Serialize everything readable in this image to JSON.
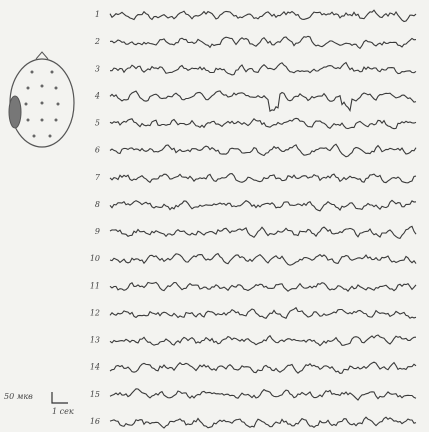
{
  "channels": [
    {
      "label": "1"
    },
    {
      "label": "2"
    },
    {
      "label": "3"
    },
    {
      "label": "4"
    },
    {
      "label": "5"
    },
    {
      "label": "6"
    },
    {
      "label": "7"
    },
    {
      "label": "8"
    },
    {
      "label": "9"
    },
    {
      "label": "10"
    },
    {
      "label": "11"
    },
    {
      "label": "12"
    },
    {
      "label": "13"
    },
    {
      "label": "14"
    },
    {
      "label": "15"
    },
    {
      "label": "16"
    }
  ],
  "scale": {
    "amplitude": "50 мкв",
    "time": "1 сек"
  }
}
